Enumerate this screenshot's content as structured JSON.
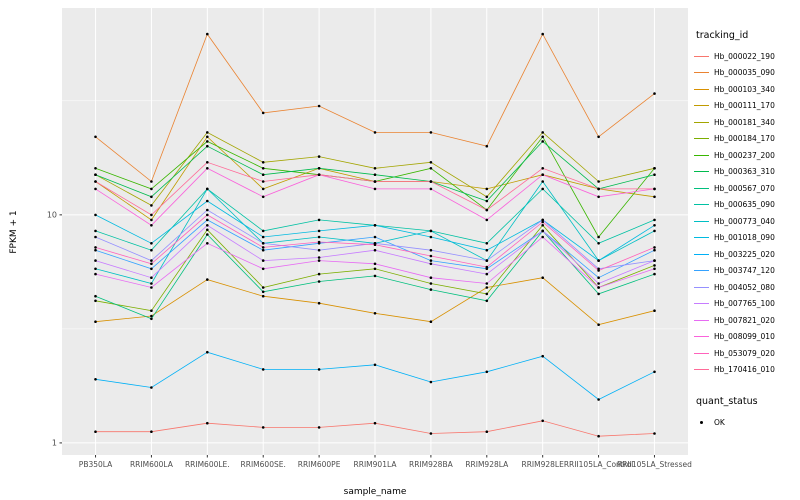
{
  "legend": {
    "tracking_title": "tracking_id",
    "quant_title": "quant_status",
    "quant_value": "OK"
  },
  "chart_data": {
    "type": "line",
    "title": "",
    "xlabel": "sample_name",
    "ylabel": "FPKM + 1",
    "y_scale": "log10",
    "y_ticks": [
      1,
      10
    ],
    "ylim": [
      0.9,
      80
    ],
    "panel_bg": "#EBEBEB",
    "grid_color": "#FFFFFF",
    "point_color": "#000000",
    "legend_position": "right",
    "categories": [
      "PB350LA",
      "RRIM600LA",
      "RRIM600LE.",
      "RRIM600SE.",
      "RRIM600PE",
      "RRIM901LA",
      "RRIM928BA",
      "RRIM928LA",
      "RRIM928LE",
      "RRII105LA_Control",
      "RRII105LA_Stressed"
    ],
    "series": [
      {
        "name": "Hb_000022_190",
        "color": "#F8766D",
        "values": [
          1.12,
          1.12,
          1.22,
          1.17,
          1.17,
          1.22,
          1.1,
          1.12,
          1.25,
          1.07,
          1.1
        ]
      },
      {
        "name": "Hb_000035_090",
        "color": "#EA8331",
        "values": [
          22,
          14,
          62,
          28,
          30,
          23,
          23,
          20,
          62,
          22,
          34
        ]
      },
      {
        "name": "Hb_000103_340",
        "color": "#D89000",
        "values": [
          3.4,
          3.6,
          5.2,
          4.4,
          4.1,
          3.7,
          3.4,
          4.8,
          5.3,
          3.3,
          3.8
        ]
      },
      {
        "name": "Hb_000111_170",
        "color": "#C09B00",
        "values": [
          14,
          9.5,
          22,
          13,
          16,
          14,
          14,
          13,
          15,
          13,
          12
        ]
      },
      {
        "name": "Hb_000181_340",
        "color": "#A3A500",
        "values": [
          15,
          11,
          23,
          17,
          18,
          16,
          17,
          12,
          23,
          14,
          16
        ]
      },
      {
        "name": "Hb_000184_170",
        "color": "#7CAE00",
        "values": [
          4.2,
          3.8,
          8.6,
          4.8,
          5.5,
          5.8,
          5.0,
          4.5,
          9.0,
          4.8,
          6.0
        ]
      },
      {
        "name": "Hb_000237_200",
        "color": "#39B600",
        "values": [
          16,
          13,
          21,
          16,
          15,
          14,
          16,
          10.5,
          22,
          8,
          16
        ]
      },
      {
        "name": "Hb_000363_310",
        "color": "#00BB4E",
        "values": [
          15,
          12,
          20,
          15,
          16,
          15,
          14,
          11.5,
          21,
          13,
          15
        ]
      },
      {
        "name": "Hb_000567_070",
        "color": "#00BF7D",
        "values": [
          4.4,
          3.5,
          8.2,
          4.6,
          5.1,
          5.4,
          4.7,
          4.2,
          8.5,
          4.5,
          5.5
        ]
      },
      {
        "name": "Hb_000635_090",
        "color": "#00C1A3",
        "values": [
          8.5,
          7,
          13,
          8.5,
          9.5,
          9,
          8.5,
          7.5,
          13,
          7.5,
          9.5
        ]
      },
      {
        "name": "Hb_000773_040",
        "color": "#00BFC4",
        "values": [
          5.8,
          5.0,
          13,
          7.5,
          8,
          7.5,
          8.5,
          6.3,
          14,
          6.3,
          8.5
        ]
      },
      {
        "name": "Hb_001018_090",
        "color": "#00BAE0",
        "values": [
          10,
          7.5,
          11.5,
          8,
          8.5,
          9,
          8,
          7,
          9.5,
          6.3,
          9
        ]
      },
      {
        "name": "Hb_003225_020",
        "color": "#00B0F6",
        "values": [
          1.9,
          1.75,
          2.5,
          2.1,
          2.1,
          2.2,
          1.85,
          2.05,
          2.4,
          1.55,
          2.05
        ]
      },
      {
        "name": "Hb_003747_120",
        "color": "#35A2FF",
        "values": [
          7,
          5.8,
          9.5,
          7,
          7.5,
          8,
          6.3,
          5.8,
          8.5,
          5.3,
          7
        ]
      },
      {
        "name": "Hb_004052_080",
        "color": "#9590FF",
        "values": [
          8,
          6.3,
          10.5,
          7.5,
          7,
          7.5,
          7,
          6.3,
          9.5,
          5.8,
          6.3
        ]
      },
      {
        "name": "Hb_007765_100",
        "color": "#C77CFF",
        "values": [
          6.3,
          5.3,
          9,
          6.3,
          6.5,
          7,
          6.1,
          5.5,
          8.5,
          5.0,
          6.3
        ]
      },
      {
        "name": "Hb_007821_020",
        "color": "#E76BF3",
        "values": [
          5.5,
          4.8,
          7.5,
          5.8,
          6.3,
          6.1,
          5.3,
          5.0,
          8,
          4.8,
          5.8
        ]
      },
      {
        "name": "Hb_008099_010",
        "color": "#FA62DB",
        "values": [
          13,
          9,
          16,
          12,
          15,
          13,
          13,
          9.5,
          15,
          12,
          13
        ]
      },
      {
        "name": "Hb_053079_020",
        "color": "#FF62BC",
        "values": [
          7.2,
          6.1,
          10,
          7.2,
          7.6,
          7.4,
          6.6,
          5.9,
          9.3,
          5.7,
          7.2
        ]
      },
      {
        "name": "Hb_170416_010",
        "color": "#FF6A98",
        "values": [
          14,
          10,
          17,
          14,
          15,
          14,
          14,
          10.5,
          16,
          13,
          13
        ]
      }
    ]
  }
}
